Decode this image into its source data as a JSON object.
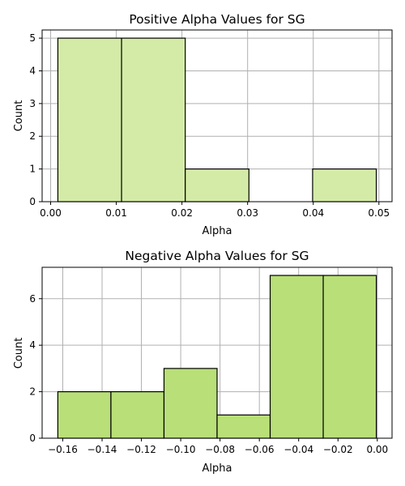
{
  "chart_data": [
    {
      "type": "bar",
      "title": "Positive Alpha Values for SG",
      "xlabel": "Alpha",
      "ylabel": "Count",
      "bar_color": "#d3eba6",
      "bins": [
        {
          "start": 0.0011,
          "end": 0.0108,
          "count": 5
        },
        {
          "start": 0.0108,
          "end": 0.0205,
          "count": 5
        },
        {
          "start": 0.0205,
          "end": 0.0302,
          "count": 1
        },
        {
          "start": 0.0302,
          "end": 0.0399,
          "count": 0
        },
        {
          "start": 0.0399,
          "end": 0.0496,
          "count": 1
        }
      ],
      "xlim": [
        -0.0013,
        0.052
      ],
      "ylim": [
        0,
        5.25
      ],
      "xticks": [
        0.0,
        0.01,
        0.02,
        0.03,
        0.04,
        0.05
      ],
      "xtick_labels": [
        "0.00",
        "0.01",
        "0.02",
        "0.03",
        "0.04",
        "0.05"
      ],
      "yticks": [
        0,
        1,
        2,
        3,
        4,
        5
      ],
      "ytick_labels": [
        "0",
        "1",
        "2",
        "3",
        "4",
        "5"
      ],
      "grid": true
    },
    {
      "type": "bar",
      "title": "Negative Alpha Values for SG",
      "xlabel": "Alpha",
      "ylabel": "Count",
      "bar_color": "#b8df78",
      "bins": [
        {
          "start": -0.1625,
          "end": -0.1355,
          "count": 2
        },
        {
          "start": -0.1355,
          "end": -0.1085,
          "count": 2
        },
        {
          "start": -0.1085,
          "end": -0.0815,
          "count": 3
        },
        {
          "start": -0.0815,
          "end": -0.0545,
          "count": 1
        },
        {
          "start": -0.0545,
          "end": -0.0275,
          "count": 7
        },
        {
          "start": -0.0275,
          "end": -0.0005,
          "count": 7
        }
      ],
      "xlim": [
        -0.1705,
        0.0075
      ],
      "ylim": [
        0,
        7.35
      ],
      "xticks": [
        -0.16,
        -0.14,
        -0.12,
        -0.1,
        -0.08,
        -0.06,
        -0.04,
        -0.02,
        0.0
      ],
      "xtick_labels": [
        "−0.16",
        "−0.14",
        "−0.12",
        "−0.10",
        "−0.08",
        "−0.06",
        "−0.04",
        "−0.02",
        "0.00"
      ],
      "yticks": [
        0,
        2,
        4,
        6
      ],
      "ytick_labels": [
        "0",
        "2",
        "4",
        "6"
      ],
      "grid": true
    }
  ]
}
